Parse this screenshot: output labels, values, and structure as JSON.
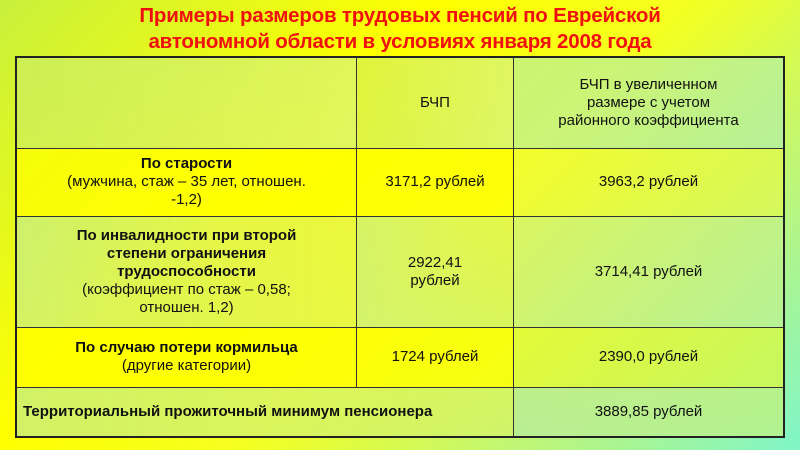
{
  "title": {
    "line1": "Примеры размеров трудовых пенсий по Еврейской",
    "line2": "автономной области в условиях января 2008 года"
  },
  "table": {
    "headers": [
      "",
      "БЧП",
      "БЧП в увеличенном размере с учетом районного коэффициента"
    ],
    "rows": [
      {
        "label": "По старости",
        "note": "(мужчина, стаж – 35 лет, отношен. -1,2)",
        "bchp": "3171,2 рублей",
        "bchp_rk": "3963,2 рублей"
      },
      {
        "label": "По инвалидности при второй степени ограничения трудоспособности",
        "note": "(коэффициент по стаж – 0,58; отношен. 1,2)",
        "bchp": "2922,41 рублей",
        "bchp_rk": "3714,41 рублей"
      },
      {
        "label": "По случаю потери кормильца",
        "note": "(другие категории)",
        "bchp": "1724 рублей",
        "bchp_rk": "2390,0 рублей"
      }
    ],
    "footer": {
      "label": "Территориальный прожиточный минимум пенсионера",
      "value": "3889,85 рублей"
    }
  },
  "colors": {
    "title": "#f01010",
    "background_center": "#ffff00",
    "background_edge": "#7ff5c8"
  }
}
